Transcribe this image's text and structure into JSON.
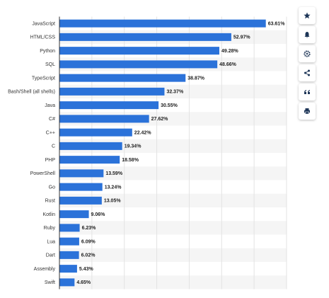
{
  "chart_data": {
    "type": "bar",
    "orientation": "horizontal",
    "categories": [
      "JavaScript",
      "HTML/CSS",
      "Python",
      "SQL",
      "TypeScript",
      "Bash/Shell (all shells)",
      "Java",
      "C#",
      "C++",
      "C",
      "PHP",
      "PowerShell",
      "Go",
      "Rust",
      "Kotlin",
      "Ruby",
      "Lua",
      "Dart",
      "Assembly",
      "Swift"
    ],
    "values": [
      63.61,
      52.97,
      49.28,
      48.66,
      38.87,
      32.37,
      30.55,
      27.62,
      22.42,
      19.34,
      18.58,
      13.59,
      13.24,
      13.05,
      9.06,
      6.23,
      6.09,
      6.02,
      5.43,
      4.65
    ],
    "value_labels": [
      "63.61%",
      "52.97%",
      "49.28%",
      "48.66%",
      "38.87%",
      "32.37%",
      "30.55%",
      "27.62%",
      "22.42%",
      "19.34%",
      "18.58%",
      "13.59%",
      "13.24%",
      "13.05%",
      "9.06%",
      "6.23%",
      "6.09%",
      "6.02%",
      "5.43%",
      "4.65%"
    ],
    "color": "#2b72d9",
    "xlim": [
      0,
      70
    ],
    "xticks": [
      0,
      10,
      20,
      30,
      40,
      50,
      60,
      70
    ],
    "grid": true
  }
}
